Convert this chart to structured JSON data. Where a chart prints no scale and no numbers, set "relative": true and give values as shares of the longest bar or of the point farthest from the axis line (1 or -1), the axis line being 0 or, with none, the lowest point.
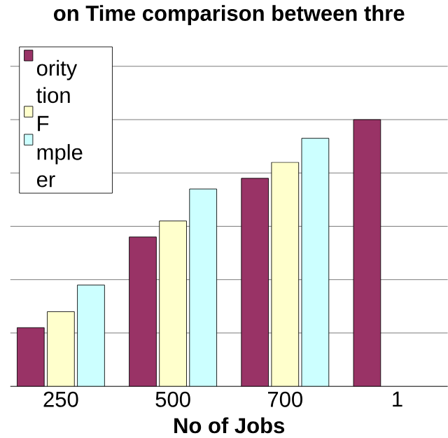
{
  "chart_data": {
    "type": "bar",
    "title": "on Time comparison between thre",
    "xlabel": "No of Jobs",
    "categories": [
      "250",
      "500",
      "700",
      "1"
    ],
    "relative": true,
    "grid": "y",
    "legend": "top left",
    "series": [
      {
        "name": "ority tion",
        "color": "#993366",
        "values": [
          0.22,
          0.56,
          0.78,
          1.0
        ]
      },
      {
        "name": "F",
        "color": "#ffffcc",
        "values": [
          0.28,
          0.62,
          0.84,
          null
        ]
      },
      {
        "name": "mple er",
        "color": "#ccffff",
        "values": [
          0.38,
          0.74,
          0.93,
          null
        ]
      }
    ]
  }
}
